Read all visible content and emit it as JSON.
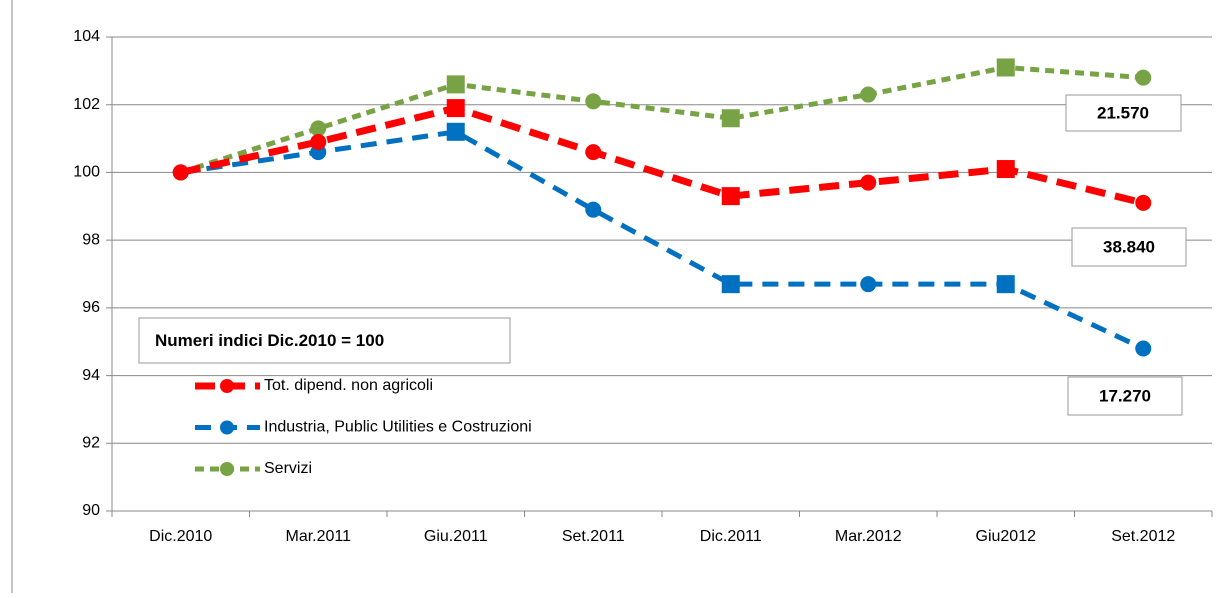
{
  "chart_data": {
    "type": "line",
    "categories": [
      "Dic.2010",
      "Mar.2011",
      "Giu.2011",
      "Set.2011",
      "Dic.2011",
      "Mar.2012",
      "Giu2012",
      "Set.2012"
    ],
    "series": [
      {
        "name": "Tot. dipend. non agricoli",
        "color": "#ff0000",
        "values": [
          100,
          100.9,
          101.9,
          100.6,
          99.3,
          99.7,
          100.1,
          99.1
        ]
      },
      {
        "name": "Industria, Public Utilities e Costruzioni",
        "color": "#0070c0",
        "values": [
          100,
          100.6,
          101.2,
          98.9,
          96.7,
          96.7,
          96.7,
          94.8
        ]
      },
      {
        "name": "Servizi",
        "color": "#77a345",
        "values": [
          100,
          101.3,
          102.6,
          102.1,
          101.6,
          102.3,
          103.1,
          102.8
        ]
      }
    ],
    "ylim": [
      90,
      104
    ],
    "yticks": [
      90,
      92,
      94,
      96,
      98,
      100,
      102,
      104
    ],
    "grid": true,
    "annotations": [
      "Numeri indici Dic.2010 = 100",
      "21.570",
      "38.840",
      "17.270"
    ]
  }
}
